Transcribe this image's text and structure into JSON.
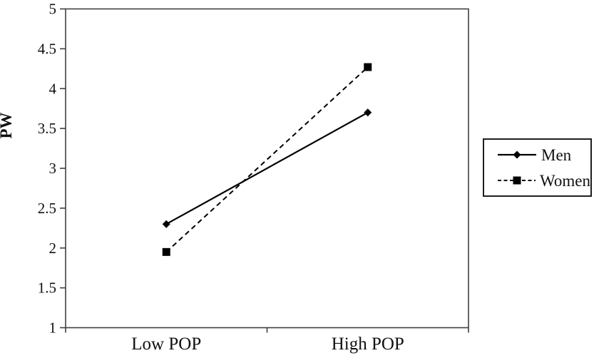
{
  "chart_data": {
    "type": "line",
    "title": "",
    "categories": [
      "Low POP",
      "High POP"
    ],
    "series": [
      {
        "name": "Men",
        "values": [
          2.3,
          3.7
        ],
        "line_style": "solid",
        "marker": "diamond",
        "color": "#000000"
      },
      {
        "name": "Women",
        "values": [
          1.95,
          4.27
        ],
        "line_style": "dashed",
        "marker": "square",
        "color": "#000000"
      }
    ],
    "xlabel": "",
    "ylabel": "PW",
    "ylim": [
      1,
      5
    ],
    "ytick_step": 0.5,
    "yticks": [
      1,
      1.5,
      2,
      2.5,
      3,
      3.5,
      4,
      4.5,
      5
    ],
    "grid": false,
    "legend_position": "right",
    "frame": true,
    "axis_color": "#404040",
    "data_color": "#000000"
  }
}
